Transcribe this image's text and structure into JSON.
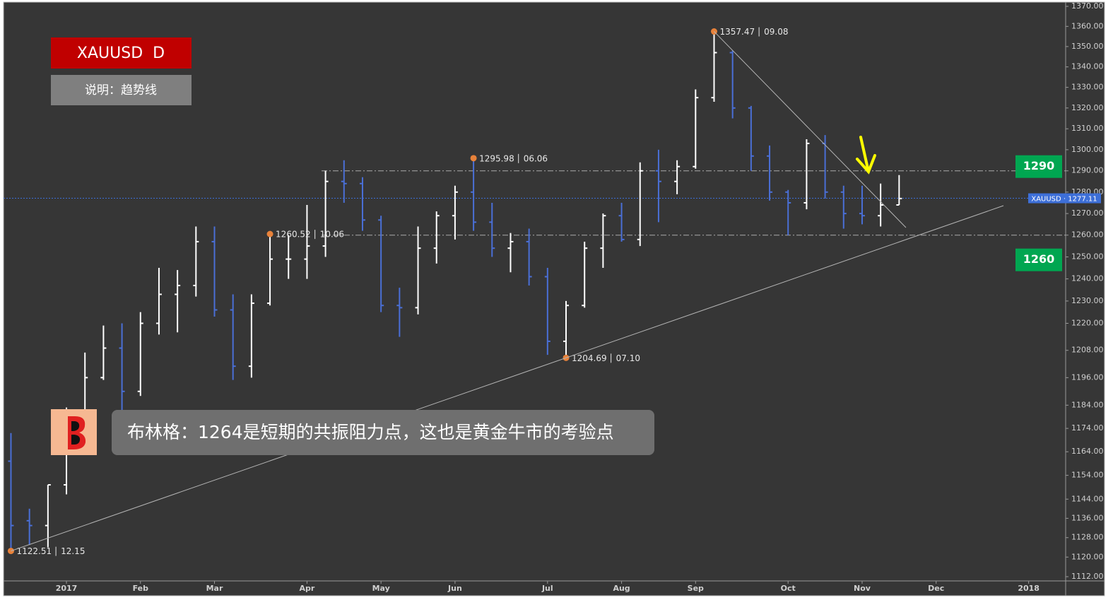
{
  "chart_data": {
    "type": "ohlc",
    "title": "XAUUSD  D",
    "subtitle": "说明：趋势线",
    "commentary": "布林格：1264是短期的共振阻力点，这也是黄金牛市的考验点",
    "log_scale": true,
    "ylim": [
      1112,
      1370
    ],
    "yticks": [
      {
        "value": 1370,
        "label": "1370.00"
      },
      {
        "value": 1360,
        "label": "1360.00"
      },
      {
        "value": 1350,
        "label": "1350.00"
      },
      {
        "value": 1340,
        "label": "1340.00"
      },
      {
        "value": 1330,
        "label": "1330.00"
      },
      {
        "value": 1320,
        "label": "1320.00"
      },
      {
        "value": 1310,
        "label": "1310.00"
      },
      {
        "value": 1300,
        "label": "1300.00"
      },
      {
        "value": 1290,
        "label": "1290.00"
      },
      {
        "value": 1280,
        "label": "1280.00"
      },
      {
        "value": 1270,
        "label": "1270.00"
      },
      {
        "value": 1260,
        "label": "1260.00"
      },
      {
        "value": 1250,
        "label": "1250.00"
      },
      {
        "value": 1240,
        "label": "1240.00"
      },
      {
        "value": 1230,
        "label": "1230.00"
      },
      {
        "value": 1220,
        "label": "1220.00"
      },
      {
        "value": 1208,
        "label": "1208.00"
      },
      {
        "value": 1196,
        "label": "1196.00"
      },
      {
        "value": 1184,
        "label": "1184.00"
      },
      {
        "value": 1174,
        "label": "1174.00"
      },
      {
        "value": 1164,
        "label": "1164.00"
      },
      {
        "value": 1154,
        "label": "1154.00"
      },
      {
        "value": 1144,
        "label": "1144.00"
      },
      {
        "value": 1136,
        "label": "1136.00"
      },
      {
        "value": 1128,
        "label": "1128.00"
      },
      {
        "value": 1120,
        "label": "1120.00"
      },
      {
        "value": 1112,
        "label": "1112.00"
      }
    ],
    "categories": [
      null,
      null,
      null,
      "2017",
      null,
      null,
      null,
      "Feb",
      null,
      null,
      null,
      "Mar",
      null,
      null,
      null,
      null,
      "Apr",
      null,
      null,
      null,
      "May",
      null,
      null,
      null,
      "Jun",
      null,
      null,
      null,
      null,
      "Jul",
      null,
      null,
      null,
      "Aug",
      null,
      null,
      null,
      "Sep",
      null,
      null,
      null,
      null,
      "Oct",
      null,
      null,
      null,
      "Nov",
      null,
      null,
      null,
      "Dec",
      null,
      null,
      null,
      null,
      "2018",
      null,
      null
    ],
    "series": [
      {
        "name": "XAUUSD",
        "up_color": "#ffffff",
        "down_color": "#4a6fd6",
        "open": [
          1160,
          1135,
          1133,
          1150,
          1173,
          1196,
          1209,
          1190,
          1220,
          1233,
          1237,
          1257,
          1226,
          1201,
          1229,
          1249,
          1249,
          1255,
          1285,
          1284,
          1267,
          1228,
          1227,
          1254,
          1269,
          1280,
          1266,
          1254,
          1257,
          1241,
          1212,
          1228,
          1254,
          1269,
          1258,
          1290,
          1285,
          1292,
          1325,
          1347,
          1320,
          1297,
          1280,
          1275,
          1303,
          1280,
          1270,
          1269,
          1274,
          null,
          null,
          null,
          null,
          null,
          null,
          null,
          null,
          null
        ],
        "high": [
          1172,
          1140,
          1150,
          1183,
          1207,
          1219,
          1220,
          1225,
          1245,
          1244,
          1264,
          1264,
          1233,
          1233,
          1261,
          1260,
          1274,
          1290,
          1295,
          1287,
          1269,
          1236,
          1264,
          1271,
          1283,
          1296,
          1275,
          1261,
          1263,
          1245,
          1230,
          1257,
          1270,
          1275,
          1294,
          1300,
          1295,
          1329,
          1357,
          1348,
          1321,
          1302,
          1281,
          1305,
          1307,
          1283,
          1283,
          1284,
          1288,
          null,
          null,
          null,
          null,
          null,
          null,
          null,
          null,
          null
        ],
        "low": [
          1122,
          1125,
          1124,
          1146,
          1170,
          1195,
          1180,
          1188,
          1215,
          1216,
          1232,
          1223,
          1195,
          1196,
          1228,
          1240,
          1240,
          1250,
          1275,
          1262,
          1225,
          1214,
          1224,
          1247,
          1258,
          1262,
          1250,
          1243,
          1237,
          1206,
          1205,
          1227,
          1245,
          1257,
          1255,
          1266,
          1279,
          1291,
          1323,
          1315,
          1290,
          1276,
          1260,
          1272,
          1277,
          1263,
          1265,
          1264,
          1274,
          null,
          null,
          null,
          null,
          null,
          null,
          null,
          null,
          null
        ],
        "close": [
          1133,
          1133,
          1150,
          1173,
          1196,
          1209,
          1190,
          1220,
          1233,
          1237,
          1257,
          1226,
          1201,
          1229,
          1249,
          1249,
          1255,
          1285,
          1284,
          1267,
          1228,
          1227,
          1254,
          1269,
          1280,
          1266,
          1254,
          1257,
          1241,
          1212,
          1228,
          1254,
          1269,
          1258,
          1290,
          1285,
          1292,
          1325,
          1347,
          1320,
          1297,
          1280,
          1275,
          1303,
          1280,
          1270,
          1269,
          1274,
          1277,
          null,
          null,
          null,
          null,
          null,
          null,
          null,
          null,
          null
        ]
      }
    ],
    "last_price": {
      "label": "XAUUSD",
      "value": 1277.11,
      "color": "#3d6fd8"
    },
    "levels": [
      1290,
      1260
    ],
    "level_color": "#00a651",
    "pivots": [
      {
        "value": 1357.47,
        "date": "09.08"
      },
      {
        "value": 1295.98,
        "date": "06.06"
      },
      {
        "value": 1260.52,
        "date": "10.06"
      },
      {
        "value": 1204.69,
        "date": "07.10"
      },
      {
        "value": 1122.51,
        "date": "12.15"
      }
    ],
    "pivot_color": "#e8823a"
  }
}
